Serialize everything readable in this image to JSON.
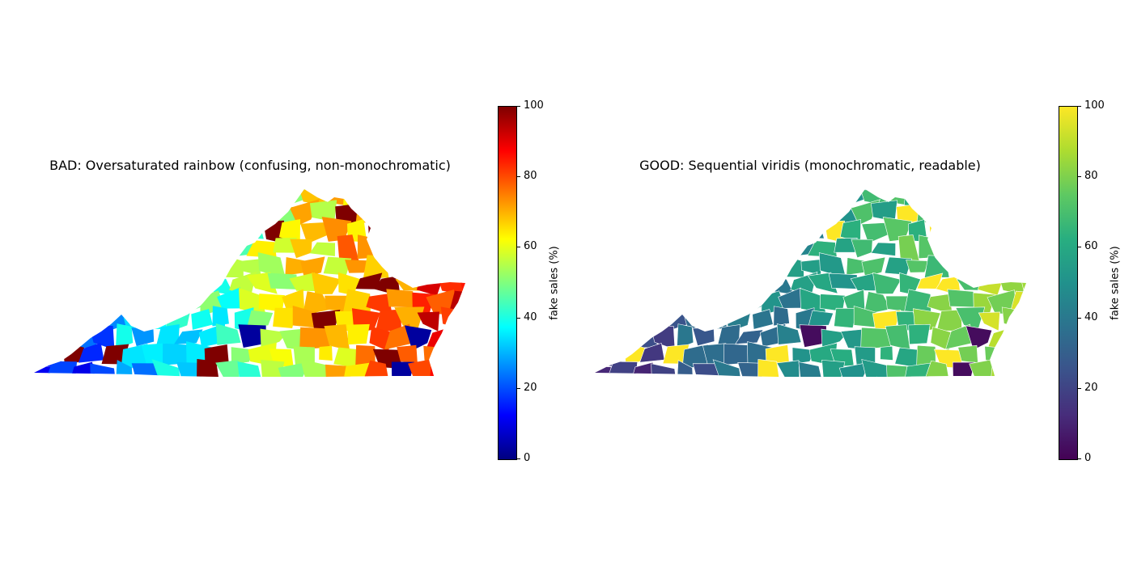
{
  "panels": [
    {
      "title": "BAD: Oversaturated rainbow (confusing, non-monochromatic)",
      "colormap": "jet",
      "colorbar": {
        "label": "fake sales (%)",
        "min": 0,
        "max": 100,
        "ticks": [
          "0",
          "20",
          "40",
          "60",
          "80",
          "100"
        ]
      }
    },
    {
      "title": "GOOD: Sequential viridis (monochromatic, readable)",
      "colormap": "viridis",
      "colorbar": {
        "label": "fake sales (%)",
        "min": 0,
        "max": 100,
        "ticks": [
          "0",
          "20",
          "40",
          "60",
          "80",
          "100"
        ]
      }
    }
  ],
  "colormaps": {
    "jet": [
      "#00007f",
      "#0000ff",
      "#007fff",
      "#00ffff",
      "#7fff7f",
      "#ffff00",
      "#ff7f00",
      "#ff0000",
      "#7f0000"
    ],
    "viridis": [
      "#440154",
      "#472d7b",
      "#3b528b",
      "#2c728e",
      "#21918c",
      "#28ae80",
      "#5ec962",
      "#addc30",
      "#fde725"
    ]
  },
  "chart_data": {
    "type": "choropleth",
    "region": "Virginia counties",
    "value_range": [
      0,
      100
    ],
    "trend": "values rise from west (about 15-25%) to east (about 70-90%), with a few local hotspots near 100%"
  }
}
